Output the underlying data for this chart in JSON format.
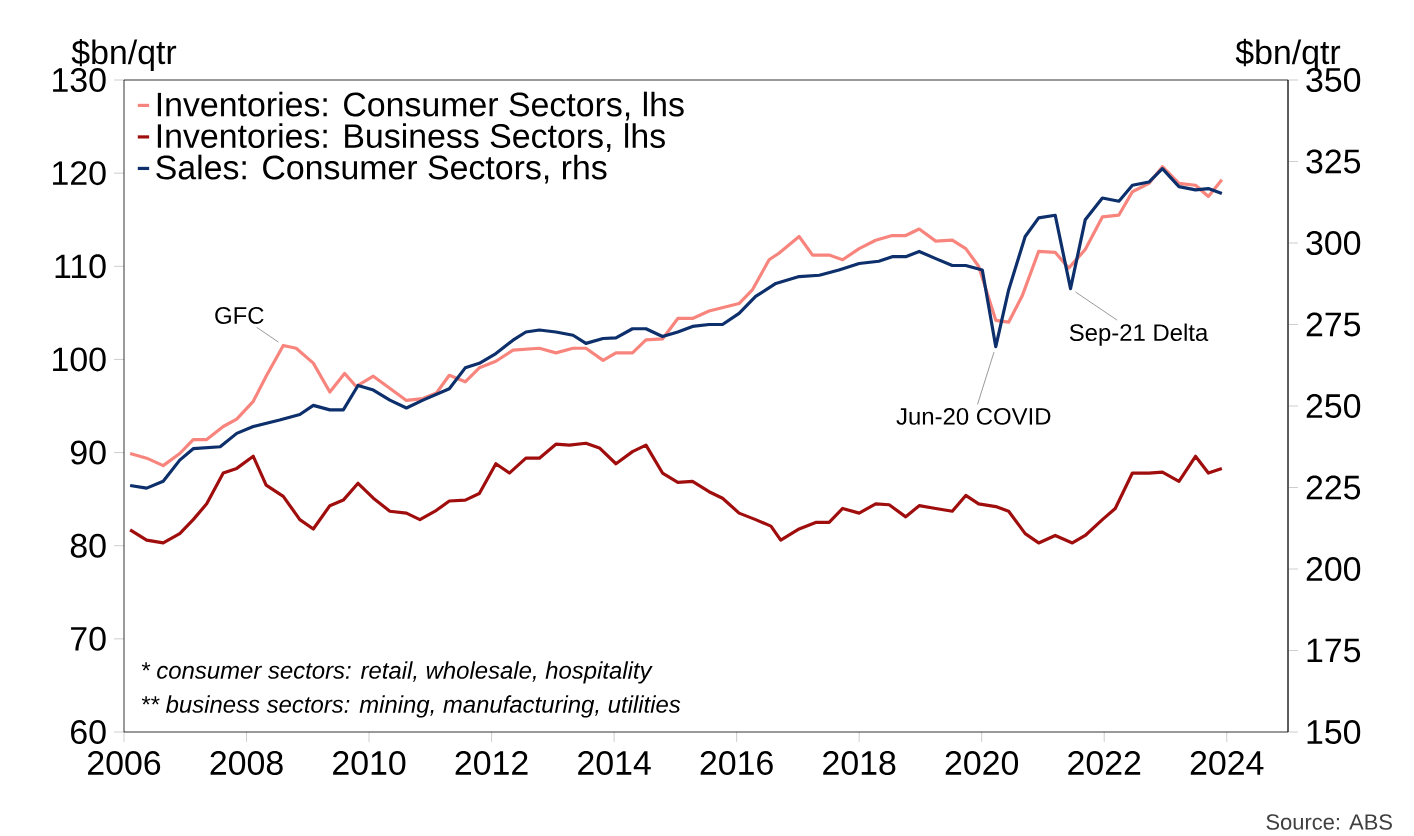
{
  "chart_data": {
    "type": "line",
    "ylabel": "$bn/qtr",
    "y2label": "$bn/qtr",
    "xlim": [
      2006,
      2025
    ],
    "xticks": [
      2006,
      2008,
      2010,
      2012,
      2014,
      2016,
      2018,
      2020,
      2022,
      2024
    ],
    "ylim": [
      60,
      130
    ],
    "yticks": [
      60,
      70,
      80,
      90,
      100,
      110,
      120,
      130
    ],
    "y2lim": [
      150,
      350
    ],
    "y2ticks": [
      150,
      175,
      200,
      225,
      250,
      275,
      300,
      325,
      350
    ],
    "legend": "top left",
    "series": [
      {
        "name": "Inventories: Consumer Sectors, lhs",
        "color": "#f8857d",
        "x": [
          2006.1,
          2006.37,
          2006.64,
          2006.91,
          2007.13,
          2007.35,
          2007.62,
          2007.84,
          2008.11,
          2008.32,
          2008.6,
          2008.81,
          2009.09,
          2009.36,
          2009.6,
          2009.79,
          2010.07,
          2010.34,
          2010.61,
          2010.88,
          2011.1,
          2011.31,
          2011.57,
          2011.8,
          2012.07,
          2012.35,
          2012.78,
          2013.05,
          2013.33,
          2013.54,
          2013.82,
          2014.03,
          2014.3,
          2014.52,
          2014.79,
          2015.04,
          2015.28,
          2015.55,
          2016.04,
          2016.26,
          2016.53,
          2016.69,
          2017.02,
          2017.24,
          2017.51,
          2017.73,
          2018.0,
          2018.27,
          2018.54,
          2018.76,
          2018.98,
          2019.25,
          2019.52,
          2019.74,
          2019.95,
          2020.23,
          2020.44,
          2020.66,
          2020.93,
          2021.2,
          2021.42,
          2021.69,
          2021.97,
          2022.24,
          2022.46,
          2022.73,
          2022.95,
          2023.22,
          2023.49,
          2023.7,
          2023.92
        ],
        "values": [
          89.9,
          89.4,
          88.6,
          89.9,
          91.4,
          91.4,
          92.8,
          93.6,
          95.5,
          98.2,
          101.5,
          101.2,
          99.6,
          96.5,
          98.5,
          97.1,
          98.2,
          96.9,
          95.6,
          95.8,
          96.4,
          98.3,
          97.6,
          99.1,
          99.8,
          101.0,
          101.2,
          100.7,
          101.2,
          101.2,
          99.9,
          100.7,
          100.7,
          102.1,
          102.2,
          104.4,
          104.4,
          105.2,
          106.0,
          107.5,
          110.7,
          111.4,
          113.2,
          111.2,
          111.2,
          110.7,
          111.9,
          112.8,
          113.3,
          113.3,
          114.0,
          112.7,
          112.8,
          111.9,
          110.0,
          104.2,
          104.0,
          106.8,
          111.6,
          111.5,
          109.8,
          111.8,
          115.3,
          115.5,
          118.0,
          118.9,
          120.7,
          118.9,
          118.7,
          117.5,
          119.3
        ]
      },
      {
        "name": "Inventories: Business Sectors, lhs",
        "color": "#a00d0d",
        "x": [
          2006.1,
          2006.37,
          2006.64,
          2006.91,
          2007.13,
          2007.35,
          2007.62,
          2007.84,
          2008.11,
          2008.32,
          2008.6,
          2008.87,
          2009.09,
          2009.36,
          2009.58,
          2009.82,
          2010.07,
          2010.34,
          2010.61,
          2010.83,
          2011.1,
          2011.31,
          2011.57,
          2011.8,
          2012.07,
          2012.29,
          2012.56,
          2012.78,
          2013.05,
          2013.27,
          2013.54,
          2013.76,
          2014.03,
          2014.3,
          2014.52,
          2014.79,
          2015.04,
          2015.28,
          2015.55,
          2015.77,
          2016.04,
          2016.31,
          2016.56,
          2016.72,
          2017.02,
          2017.29,
          2017.51,
          2017.73,
          2018.0,
          2018.27,
          2018.49,
          2018.76,
          2018.98,
          2019.25,
          2019.52,
          2019.74,
          2019.95,
          2020.23,
          2020.44,
          2020.71,
          2020.93,
          2021.2,
          2021.48,
          2021.69,
          2021.97,
          2022.18,
          2022.46,
          2022.73,
          2022.95,
          2023.22,
          2023.49,
          2023.7,
          2023.92
        ],
        "values": [
          81.7,
          80.6,
          80.3,
          81.3,
          82.8,
          84.5,
          87.8,
          88.3,
          89.6,
          86.5,
          85.3,
          82.8,
          81.8,
          84.3,
          84.9,
          86.7,
          85.1,
          83.7,
          83.5,
          82.8,
          83.8,
          84.8,
          84.9,
          85.6,
          88.8,
          87.8,
          89.4,
          89.4,
          90.9,
          90.8,
          91.0,
          90.5,
          88.8,
          90.1,
          90.8,
          87.8,
          86.8,
          86.9,
          85.8,
          85.1,
          83.5,
          82.8,
          82.1,
          80.6,
          81.8,
          82.5,
          82.5,
          84.0,
          83.5,
          84.5,
          84.4,
          83.1,
          84.3,
          84.0,
          83.7,
          85.4,
          84.5,
          84.2,
          83.7,
          81.3,
          80.3,
          81.1,
          80.3,
          81.1,
          82.8,
          84.0,
          87.8,
          87.8,
          87.9,
          86.9,
          89.6,
          87.8,
          88.3
        ]
      },
      {
        "name": "Sales: Consumer Sectors, rhs",
        "color": "#0d2f6b",
        "axis": "y2",
        "x": [
          2006.1,
          2006.37,
          2006.64,
          2006.91,
          2007.13,
          2007.57,
          2007.84,
          2008.11,
          2008.54,
          2008.87,
          2009.09,
          2009.36,
          2009.58,
          2009.82,
          2010.07,
          2010.34,
          2010.61,
          2010.88,
          2011.31,
          2011.57,
          2011.8,
          2012.07,
          2012.35,
          2012.56,
          2012.78,
          2013.05,
          2013.33,
          2013.54,
          2013.82,
          2014.03,
          2014.3,
          2014.52,
          2014.79,
          2015.04,
          2015.28,
          2015.55,
          2015.77,
          2016.04,
          2016.31,
          2016.64,
          2017.02,
          2017.35,
          2017.67,
          2018.0,
          2018.32,
          2018.54,
          2018.76,
          2018.98,
          2019.25,
          2019.52,
          2019.74,
          2020.01,
          2020.23,
          2020.44,
          2020.71,
          2020.93,
          2021.2,
          2021.45,
          2021.69,
          2021.97,
          2022.24,
          2022.46,
          2022.73,
          2022.95,
          2023.22,
          2023.49,
          2023.7,
          2023.92
        ],
        "values": [
          225.6,
          224.8,
          226.9,
          233.4,
          236.9,
          237.5,
          241.6,
          243.7,
          245.7,
          247.4,
          250.2,
          248.8,
          248.8,
          256.3,
          254.9,
          251.8,
          249.4,
          251.8,
          255.3,
          261.7,
          263.1,
          266.1,
          270.2,
          272.7,
          273.3,
          272.7,
          271.7,
          269.2,
          270.7,
          270.9,
          273.7,
          273.7,
          271.3,
          272.7,
          274.4,
          275.0,
          275.0,
          278.4,
          283.6,
          287.6,
          289.7,
          290.1,
          291.7,
          293.7,
          294.4,
          295.8,
          295.8,
          297.4,
          295.2,
          293.1,
          293.1,
          291.7,
          268.2,
          285.6,
          302.0,
          307.7,
          308.5,
          286.0,
          307.1,
          313.8,
          312.8,
          317.7,
          318.7,
          322.8,
          317.3,
          316.3,
          316.7,
          315.2
        ]
      }
    ],
    "annotations": [
      {
        "text": "GFC",
        "x": 2008.6,
        "y": 101.5
      },
      {
        "text": "Jun-20 COVID",
        "x": 2020.23,
        "y": 101.4
      },
      {
        "text": "Sep-21 Delta",
        "x": 2021.45,
        "y": 107.6
      },
      "* consumer sectors: retail, wholesale, hospitality",
      "** business sectors: mining, manufacturing, utilities",
      "Source: ABS"
    ]
  }
}
